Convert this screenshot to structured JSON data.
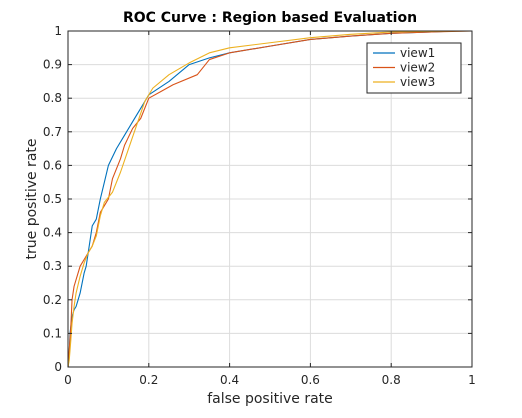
{
  "chart_data": {
    "type": "line",
    "title": "ROC Curve : Region based Evaluation",
    "xlabel": "false positive rate",
    "ylabel": "true positive rate",
    "xlim": [
      0,
      1
    ],
    "ylim": [
      0,
      1
    ],
    "xticks": [
      "0",
      "0.2",
      "0.4",
      "0.6",
      "0.8",
      "1"
    ],
    "yticks": [
      "0",
      "0.1",
      "0.2",
      "0.3",
      "0.4",
      "0.5",
      "0.6",
      "0.7",
      "0.8",
      "0.9",
      "1"
    ],
    "grid": true,
    "legend_position": "top-right",
    "series": [
      {
        "name": "view1",
        "color": "#0072bd",
        "points": [
          [
            0,
            0
          ],
          [
            0.003,
            0.03
          ],
          [
            0.005,
            0.1
          ],
          [
            0.01,
            0.15
          ],
          [
            0.015,
            0.17
          ],
          [
            0.02,
            0.18
          ],
          [
            0.025,
            0.2
          ],
          [
            0.03,
            0.22
          ],
          [
            0.035,
            0.25
          ],
          [
            0.04,
            0.28
          ],
          [
            0.045,
            0.3
          ],
          [
            0.05,
            0.34
          ],
          [
            0.055,
            0.38
          ],
          [
            0.06,
            0.42
          ],
          [
            0.07,
            0.44
          ],
          [
            0.08,
            0.5
          ],
          [
            0.09,
            0.55
          ],
          [
            0.1,
            0.6
          ],
          [
            0.12,
            0.65
          ],
          [
            0.14,
            0.69
          ],
          [
            0.16,
            0.73
          ],
          [
            0.18,
            0.77
          ],
          [
            0.2,
            0.81
          ],
          [
            0.25,
            0.85
          ],
          [
            0.3,
            0.9
          ],
          [
            0.35,
            0.92
          ],
          [
            0.4,
            0.935
          ],
          [
            0.5,
            0.955
          ],
          [
            0.6,
            0.975
          ],
          [
            0.7,
            0.985
          ],
          [
            0.8,
            0.993
          ],
          [
            0.9,
            0.997
          ],
          [
            0.96,
            1
          ],
          [
            1,
            1
          ]
        ]
      },
      {
        "name": "view2",
        "color": "#d95319",
        "points": [
          [
            0,
            0
          ],
          [
            0.003,
            0.05
          ],
          [
            0.007,
            0.12
          ],
          [
            0.01,
            0.2
          ],
          [
            0.015,
            0.24
          ],
          [
            0.02,
            0.26
          ],
          [
            0.025,
            0.28
          ],
          [
            0.03,
            0.3
          ],
          [
            0.04,
            0.32
          ],
          [
            0.05,
            0.34
          ],
          [
            0.06,
            0.36
          ],
          [
            0.07,
            0.4
          ],
          [
            0.08,
            0.46
          ],
          [
            0.09,
            0.48
          ],
          [
            0.1,
            0.5
          ],
          [
            0.11,
            0.56
          ],
          [
            0.13,
            0.62
          ],
          [
            0.14,
            0.66
          ],
          [
            0.16,
            0.71
          ],
          [
            0.18,
            0.74
          ],
          [
            0.2,
            0.8
          ],
          [
            0.23,
            0.82
          ],
          [
            0.26,
            0.84
          ],
          [
            0.32,
            0.87
          ],
          [
            0.35,
            0.915
          ],
          [
            0.4,
            0.935
          ],
          [
            0.5,
            0.955
          ],
          [
            0.6,
            0.975
          ],
          [
            0.7,
            0.985
          ],
          [
            0.8,
            0.993
          ],
          [
            0.9,
            0.997
          ],
          [
            1,
            1
          ]
        ]
      },
      {
        "name": "view3",
        "color": "#edb120",
        "points": [
          [
            0,
            0
          ],
          [
            0.003,
            0.02
          ],
          [
            0.007,
            0.08
          ],
          [
            0.01,
            0.13
          ],
          [
            0.015,
            0.18
          ],
          [
            0.02,
            0.22
          ],
          [
            0.03,
            0.27
          ],
          [
            0.04,
            0.31
          ],
          [
            0.05,
            0.34
          ],
          [
            0.06,
            0.36
          ],
          [
            0.07,
            0.39
          ],
          [
            0.08,
            0.45
          ],
          [
            0.09,
            0.49
          ],
          [
            0.11,
            0.52
          ],
          [
            0.13,
            0.58
          ],
          [
            0.15,
            0.65
          ],
          [
            0.17,
            0.72
          ],
          [
            0.19,
            0.79
          ],
          [
            0.21,
            0.83
          ],
          [
            0.25,
            0.87
          ],
          [
            0.3,
            0.905
          ],
          [
            0.35,
            0.935
          ],
          [
            0.4,
            0.95
          ],
          [
            0.5,
            0.965
          ],
          [
            0.6,
            0.98
          ],
          [
            0.7,
            0.99
          ],
          [
            0.8,
            0.997
          ],
          [
            0.9,
            0.999
          ],
          [
            1,
            1
          ]
        ]
      }
    ]
  }
}
